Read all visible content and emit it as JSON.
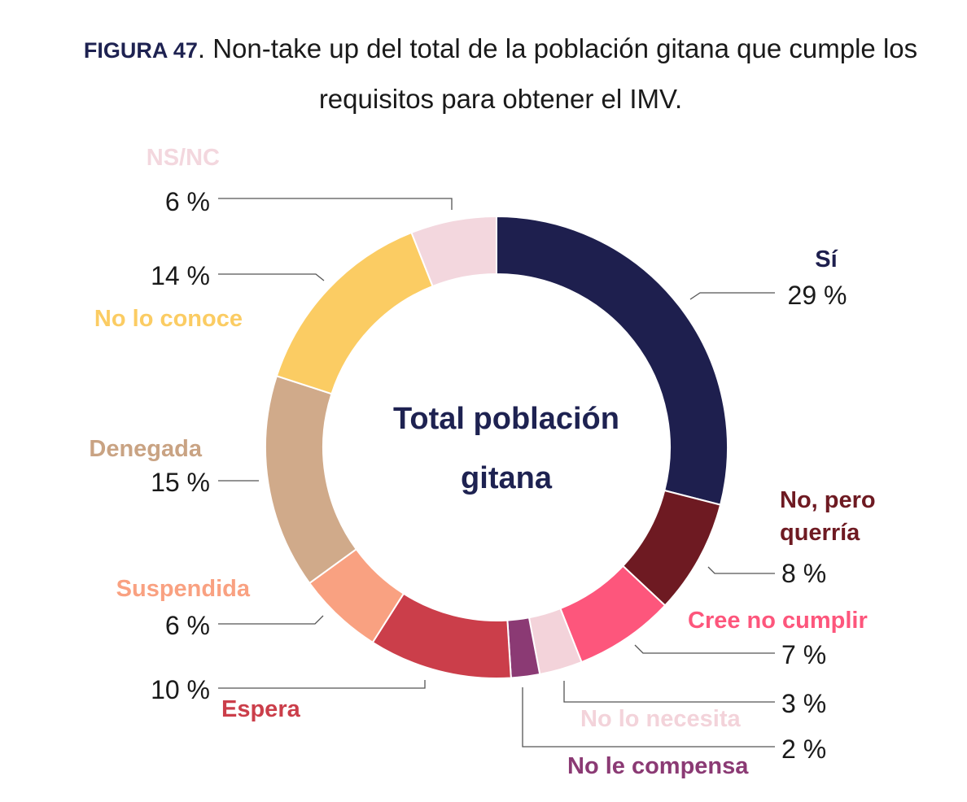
{
  "title": {
    "prefix": "FIGURA 47",
    "text": ". Non-take up del total de la población gitana que cumple los requisitos para obtener el IMV."
  },
  "chart_data": {
    "type": "pie",
    "donut": true,
    "center_label": [
      "Total población",
      "gitana"
    ],
    "slices": [
      {
        "label": "Sí",
        "label_lines": [
          "Sí"
        ],
        "value": 29,
        "value_text": "29 %",
        "color": "#1e1f4e"
      },
      {
        "label": "No, pero querría",
        "label_lines": [
          "No, pero",
          "querría"
        ],
        "value": 8,
        "value_text": "8 %",
        "color": "#6e1a22"
      },
      {
        "label": "Cree no cumplir",
        "label_lines": [
          "Cree no cumplir"
        ],
        "value": 7,
        "value_text": "7 %",
        "color": "#fd567c"
      },
      {
        "label": "No lo necesita",
        "label_lines": [
          "No lo necesita"
        ],
        "value": 3,
        "value_text": "3 %",
        "color": "#f3d3da"
      },
      {
        "label": "No le compensa",
        "label_lines": [
          "No le compensa"
        ],
        "value": 2,
        "value_text": "2 %",
        "color": "#8b3a74"
      },
      {
        "label": "Espera",
        "label_lines": [
          "Espera"
        ],
        "value": 10,
        "value_text": "10 %",
        "color": "#cb3e4a"
      },
      {
        "label": "Suspendida",
        "label_lines": [
          "Suspendida"
        ],
        "value": 6,
        "value_text": "6 %",
        "color": "#f9a181"
      },
      {
        "label": "Denegada",
        "label_lines": [
          "Denegada"
        ],
        "value": 15,
        "value_text": "15 %",
        "color": "#d0aa8a"
      },
      {
        "label": "No lo conoce",
        "label_lines": [
          "No lo conoce"
        ],
        "value": 14,
        "value_text": "14 %",
        "color": "#fbcc63"
      },
      {
        "label": "NS/NC",
        "label_lines": [
          "NS/NC"
        ],
        "value": 6,
        "value_text": "6 %",
        "color": "#f3d7de"
      }
    ]
  }
}
